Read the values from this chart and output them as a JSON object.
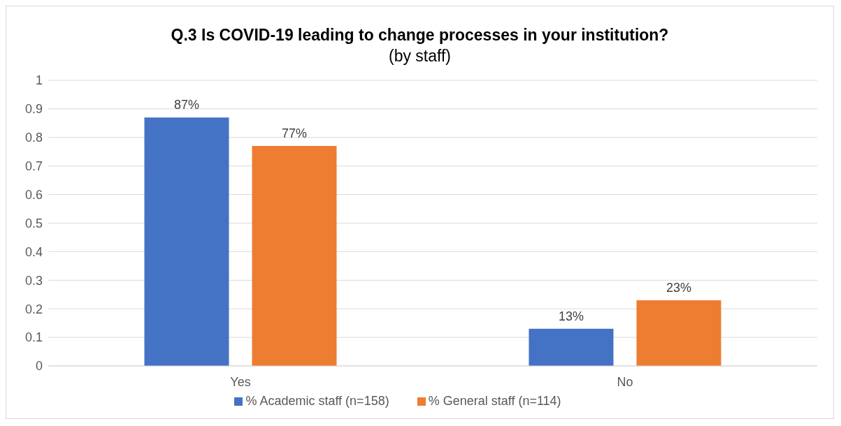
{
  "chart_data": {
    "type": "bar",
    "title": "Q.3 Is COVID-19 leading to change processes in your institution?",
    "subtitle": "(by staff)",
    "categories": [
      "Yes",
      "No"
    ],
    "series": [
      {
        "name": "% Academic staff (n=158)",
        "color": "#4472c4",
        "values": [
          0.87,
          0.13
        ],
        "value_labels": [
          "87%",
          "13%"
        ]
      },
      {
        "name": "% General staff (n=114)",
        "color": "#ed7d31",
        "values": [
          0.77,
          0.23
        ],
        "value_labels": [
          "77%",
          "23%"
        ]
      }
    ],
    "ylim": [
      0,
      1
    ],
    "yticks": [
      0,
      0.1,
      0.2,
      0.3,
      0.4,
      0.5,
      0.6,
      0.7,
      0.8,
      0.9,
      1
    ],
    "grid": "y",
    "legend": "bottom"
  }
}
